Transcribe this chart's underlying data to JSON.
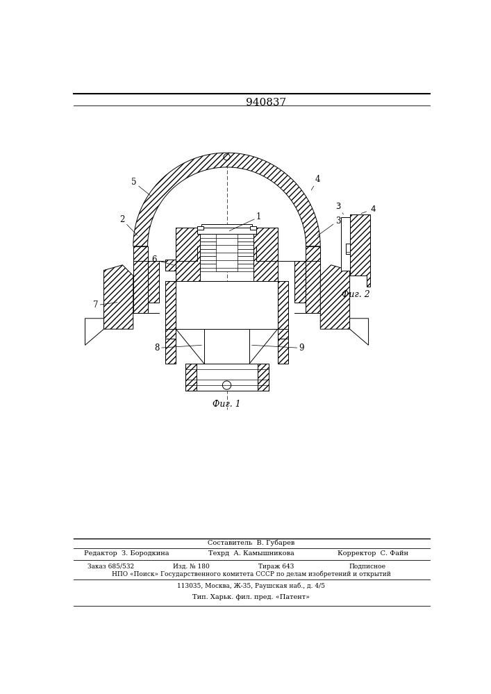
{
  "title": "940837",
  "fig1_label": "Фиг. 1",
  "fig2_label": "Фиг. 2",
  "bg_color": "#ffffff",
  "line_color": "#000000",
  "footer_lines": [
    "Составитель  В. Губарев",
    "Редактор  З. Бородкина",
    "Техрд  А. Камышникова",
    "Корректор  С. Файн",
    "Заказ 685/532",
    "Изд. № 180",
    "Тираж 643",
    "Подписное",
    "НПО «Поиск» Государственного комитета СССР по делам изобретений и открытий",
    "113035, Москва, Ж-35, Раушская наб., д. 4/5",
    "Тип. Харьк. фил. пред. «Патент»"
  ]
}
